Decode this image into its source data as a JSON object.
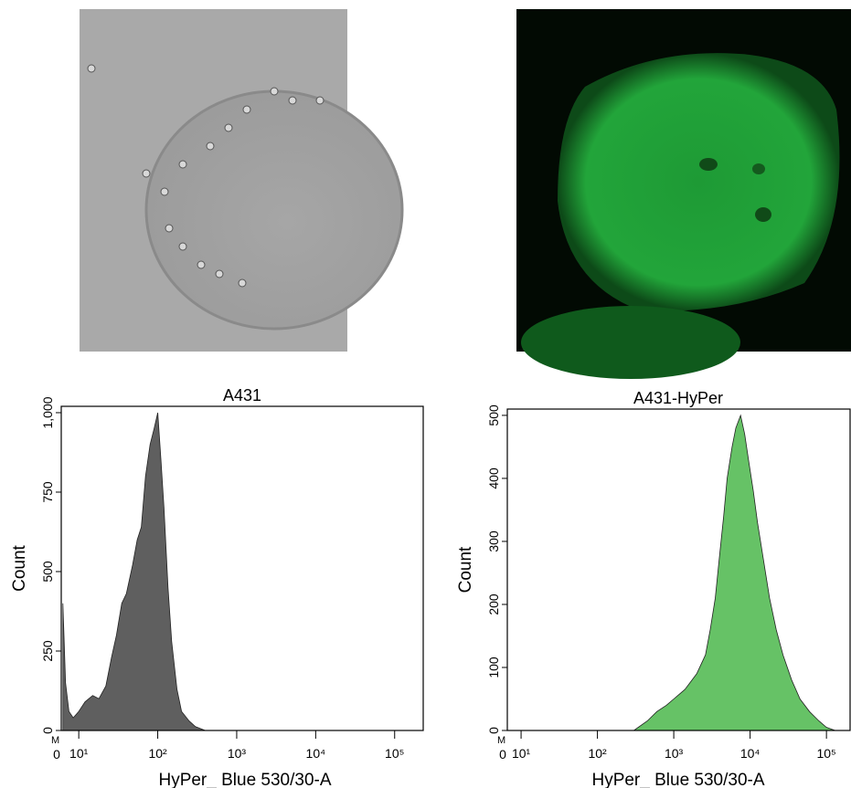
{
  "chart_data": [
    {
      "type": "area",
      "title": "A431",
      "x_label": "HyPer_ Blue 530/30-A",
      "y_label": "Count",
      "x_scale": "log",
      "color": "#5f5f5f",
      "origin_label": "0",
      "gate_label": "M",
      "x": [
        6.3,
        6.8,
        7.5,
        8.5,
        10,
        12,
        15,
        18,
        22,
        26,
        30,
        35,
        40,
        48,
        55,
        62,
        70,
        80,
        90,
        100,
        110,
        120,
        135,
        150,
        175,
        200,
        250,
        300,
        400
      ],
      "values": [
        400,
        150,
        60,
        40,
        60,
        90,
        110,
        100,
        140,
        230,
        300,
        400,
        430,
        520,
        600,
        640,
        800,
        900,
        950,
        1000,
        850,
        700,
        450,
        280,
        130,
        60,
        30,
        12,
        0
      ],
      "xlim": [
        6,
        230000
      ],
      "ylim": [
        0,
        1020
      ],
      "xticks": [
        {
          "value": 10,
          "label": "10¹"
        },
        {
          "value": 100,
          "label": "10²"
        },
        {
          "value": 1000,
          "label": "10³"
        },
        {
          "value": 10000,
          "label": "10⁴"
        },
        {
          "value": 100000,
          "label": "10⁵"
        }
      ],
      "yticks": [
        0,
        250,
        500,
        750,
        {
          "value": 1000,
          "label": "1,000"
        }
      ]
    },
    {
      "type": "area",
      "title": "A431-HyPer",
      "x_label": "HyPer_ Blue 530/30-A",
      "y_label": "Count",
      "x_scale": "log",
      "color": "#66c266",
      "origin_label": "0",
      "gate_label": "M",
      "x": [
        300,
        450,
        600,
        800,
        1000,
        1400,
        2000,
        2600,
        3000,
        3500,
        4000,
        4500,
        5000,
        5800,
        6500,
        7500,
        8500,
        9500,
        11000,
        12500,
        15000,
        18000,
        22000,
        27000,
        35000,
        45000,
        60000,
        80000,
        100000,
        130000
      ],
      "values": [
        0,
        15,
        30,
        40,
        50,
        65,
        90,
        120,
        160,
        210,
        280,
        340,
        400,
        450,
        480,
        500,
        470,
        430,
        380,
        330,
        270,
        210,
        160,
        120,
        80,
        50,
        30,
        15,
        5,
        0
      ],
      "xlim": [
        6.6,
        204000
      ],
      "ylim": [
        0,
        510
      ],
      "xticks": [
        {
          "value": 10,
          "label": "10¹"
        },
        {
          "value": 100,
          "label": "10²"
        },
        {
          "value": 1000,
          "label": "10³"
        },
        {
          "value": 10000,
          "label": "10⁴"
        },
        {
          "value": 100000,
          "label": "10⁵"
        }
      ],
      "yticks": [
        0,
        100,
        200,
        300,
        400,
        500
      ]
    }
  ]
}
